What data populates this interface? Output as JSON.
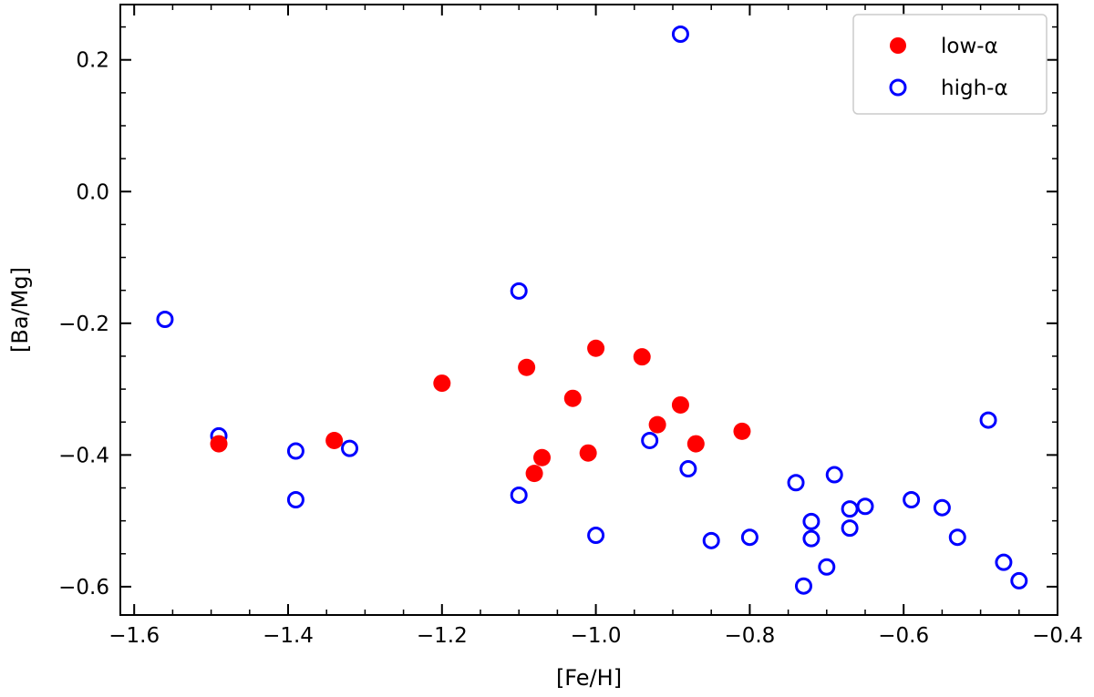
{
  "chart_data": {
    "type": "scatter",
    "xlabel": "[Fe/H]",
    "ylabel": "[Ba/Mg]",
    "xlim": [
      -1.618,
      -0.4
    ],
    "ylim": [
      -0.643,
      0.284
    ],
    "xticks": [
      -1.6,
      -1.4,
      -1.2,
      -1.0,
      -0.8,
      -0.6,
      -0.4
    ],
    "xtick_labels": [
      "−1.6",
      "−1.4",
      "−1.2",
      "−1.0",
      "−0.8",
      "−0.6",
      "−0.4"
    ],
    "yticks": [
      -0.6,
      -0.4,
      -0.2,
      0.0,
      0.2
    ],
    "ytick_labels": [
      "−0.6",
      "−0.4",
      "−0.2",
      "0.0",
      "0.2"
    ],
    "minor_tick_step": 0.05,
    "grid": false,
    "legend_placement": "top-right",
    "series": [
      {
        "name": "low-α",
        "marker": "filled-circle",
        "color": "#ff0000",
        "points": [
          [
            -1.49,
            -0.383
          ],
          [
            -1.34,
            -0.378
          ],
          [
            -1.2,
            -0.291
          ],
          [
            -1.09,
            -0.267
          ],
          [
            -1.07,
            -0.404
          ],
          [
            -1.08,
            -0.428
          ],
          [
            -1.03,
            -0.314
          ],
          [
            -1.0,
            -0.238
          ],
          [
            -1.01,
            -0.397
          ],
          [
            -0.94,
            -0.251
          ],
          [
            -0.92,
            -0.354
          ],
          [
            -0.89,
            -0.324
          ],
          [
            -0.87,
            -0.383
          ],
          [
            -0.81,
            -0.364
          ]
        ]
      },
      {
        "name": "high-α",
        "marker": "open-circle",
        "color": "#0000ff",
        "points": [
          [
            -1.56,
            -0.194
          ],
          [
            -1.49,
            -0.371
          ],
          [
            -1.39,
            -0.394
          ],
          [
            -1.39,
            -0.468
          ],
          [
            -1.32,
            -0.39
          ],
          [
            -1.1,
            -0.151
          ],
          [
            -1.1,
            -0.461
          ],
          [
            -1.0,
            -0.522
          ],
          [
            -0.93,
            -0.378
          ],
          [
            -0.89,
            0.239
          ],
          [
            -0.88,
            -0.421
          ],
          [
            -0.85,
            -0.53
          ],
          [
            -0.8,
            -0.525
          ],
          [
            -0.74,
            -0.442
          ],
          [
            -0.69,
            -0.43
          ],
          [
            -0.73,
            -0.599
          ],
          [
            -0.72,
            -0.501
          ],
          [
            -0.72,
            -0.527
          ],
          [
            -0.7,
            -0.57
          ],
          [
            -0.67,
            -0.482
          ],
          [
            -0.67,
            -0.511
          ],
          [
            -0.65,
            -0.478
          ],
          [
            -0.59,
            -0.468
          ],
          [
            -0.55,
            -0.48
          ],
          [
            -0.53,
            -0.525
          ],
          [
            -0.49,
            -0.347
          ],
          [
            -0.47,
            -0.563
          ],
          [
            -0.45,
            -0.591
          ]
        ]
      }
    ]
  }
}
